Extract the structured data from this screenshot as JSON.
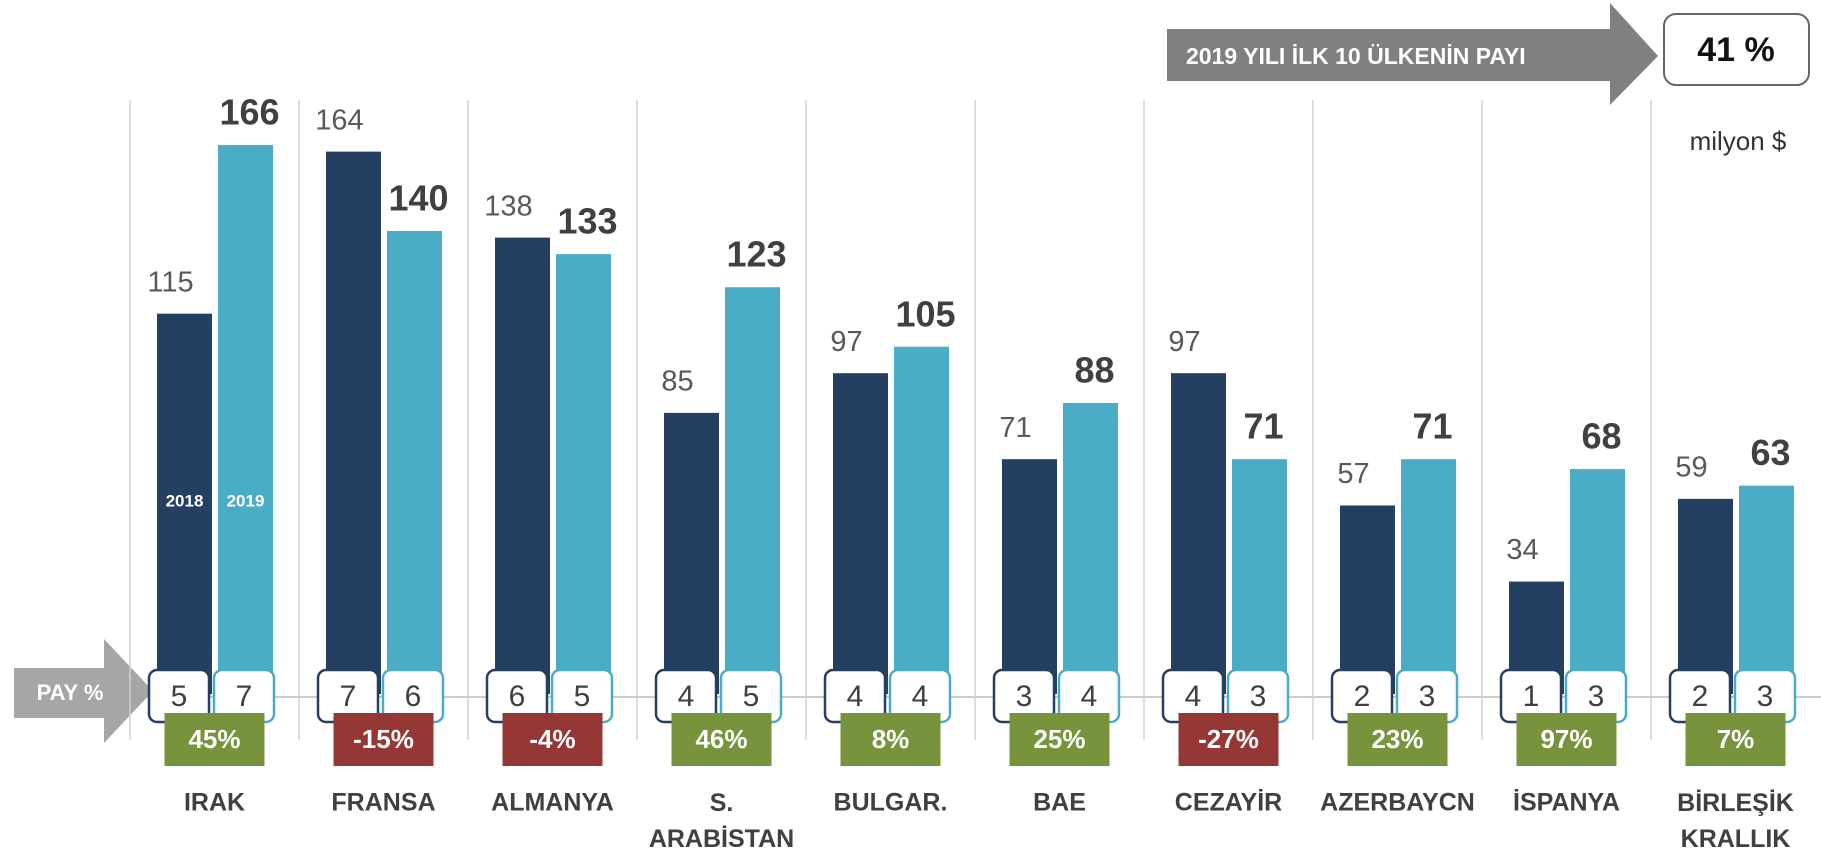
{
  "chart_data": {
    "type": "bar",
    "header": {
      "title": "2019 YILI İLK 10 ÜLKENİN PAYI",
      "value": {
        "value": 41,
        "label": "41 %"
      }
    },
    "unit": "milyon $",
    "share_label": "PAY %",
    "categories": [
      "IRAK",
      "FRANSA",
      "ALMANYA",
      "S. ARABİSTAN",
      "BULGAR.",
      "BAE",
      "CEZAYİR",
      "AZERBAYCN",
      "İSPANYA",
      "BİRLEŞİK KRALLIK"
    ],
    "series": [
      {
        "name": "2018",
        "color": "#243f60",
        "values": [
          115,
          164,
          138,
          85,
          97,
          71,
          97,
          57,
          34,
          59
        ],
        "share": [
          5,
          7,
          6,
          4,
          4,
          3,
          4,
          2,
          1,
          2
        ]
      },
      {
        "name": "2019",
        "color": "#4bacc6",
        "values": [
          166,
          140,
          133,
          123,
          105,
          88,
          71,
          71,
          68,
          63
        ],
        "share": [
          7,
          6,
          5,
          5,
          4,
          4,
          3,
          3,
          3,
          3
        ]
      }
    ],
    "change": {
      "values": [
        45,
        -15,
        -4,
        46,
        8,
        25,
        -27,
        23,
        97,
        7
      ],
      "value_labels": [
        "45%",
        "-15%",
        "-4%",
        "46%",
        "8%",
        "25%",
        "-27%",
        "23%",
        "97%",
        "7%"
      ],
      "colors": {
        "up": "#77933c",
        "down": "#953735"
      }
    }
  }
}
